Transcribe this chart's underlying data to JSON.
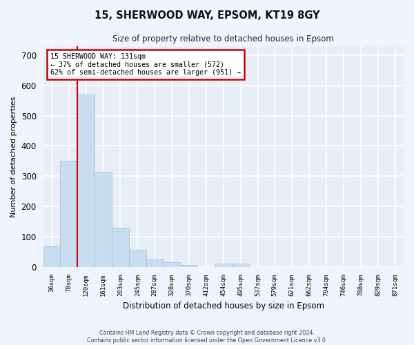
{
  "title": "15, SHERWOOD WAY, EPSOM, KT19 8GY",
  "subtitle": "Size of property relative to detached houses in Epsom",
  "xlabel": "Distribution of detached houses by size in Epsom",
  "ylabel": "Number of detached properties",
  "bar_color": "#c8ddf0",
  "bar_edge_color": "#a0bdd8",
  "background_color": "#e8eef8",
  "grid_color": "#ffffff",
  "fig_background": "#f0f4fc",
  "categories": [
    "36sqm",
    "78sqm",
    "120sqm",
    "161sqm",
    "203sqm",
    "245sqm",
    "287sqm",
    "328sqm",
    "370sqm",
    "412sqm",
    "454sqm",
    "495sqm",
    "537sqm",
    "579sqm",
    "621sqm",
    "662sqm",
    "704sqm",
    "746sqm",
    "788sqm",
    "829sqm",
    "871sqm"
  ],
  "values": [
    68,
    352,
    570,
    314,
    130,
    57,
    25,
    15,
    7,
    0,
    10,
    10,
    0,
    0,
    0,
    0,
    0,
    0,
    0,
    0,
    0
  ],
  "ylim": [
    0,
    730
  ],
  "yticks": [
    0,
    100,
    200,
    300,
    400,
    500,
    600,
    700
  ],
  "property_line_idx": 1.5,
  "property_line_label": "15 SHERWOOD WAY: 131sqm",
  "annotation_line1": "← 37% of detached houses are smaller (572)",
  "annotation_line2": "62% of semi-detached houses are larger (951) →",
  "annotation_box_color": "#ffffff",
  "annotation_border_color": "#cc0000",
  "vline_color": "#cc0000",
  "footer1": "Contains HM Land Registry data © Crown copyright and database right 2024.",
  "footer2": "Contains public sector information licensed under the Open Government Licence v3.0."
}
